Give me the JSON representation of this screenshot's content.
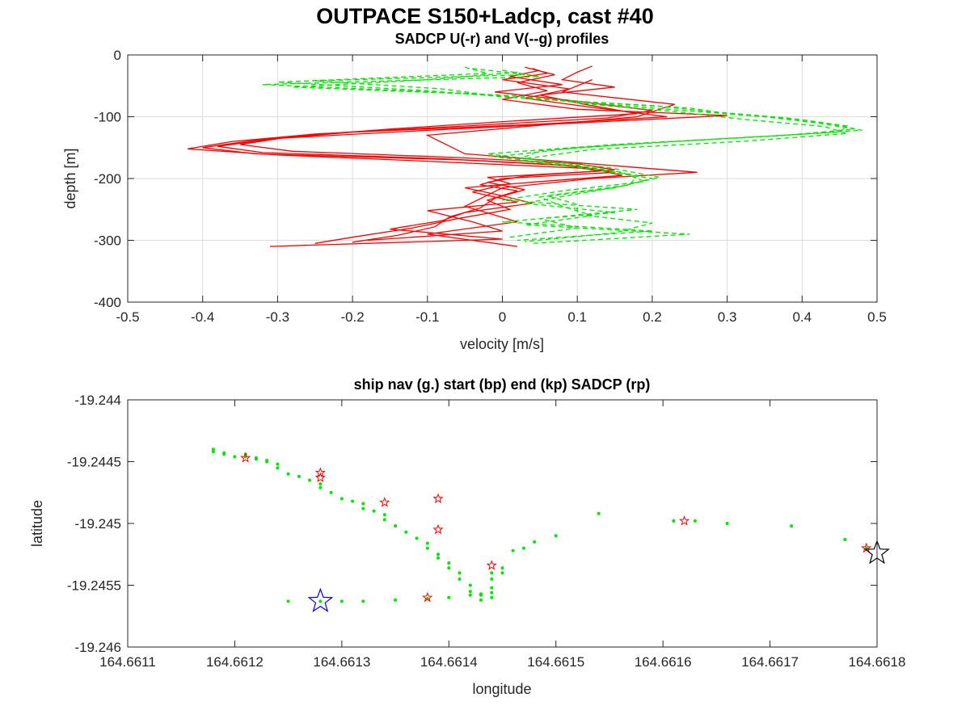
{
  "figure": {
    "title": "OUTPACE S150+Ladcp, cast #40"
  },
  "chart_data": [
    {
      "type": "line",
      "title": "SADCP U(-r) and V(--g) profiles",
      "xlabel": "velocity [m/s]",
      "ylabel": "depth [m]",
      "xlim": [
        -0.5,
        0.5
      ],
      "ylim": [
        -400,
        0
      ],
      "xticks": [
        -0.5,
        -0.4,
        -0.3,
        -0.2,
        -0.1,
        0,
        0.1,
        0.2,
        0.3,
        0.4,
        0.5
      ],
      "xtick_labels": [
        "-0.5",
        "-0.4",
        "-0.3",
        "-0.2",
        "-0.1",
        "0",
        "0.1",
        "0.2",
        "0.3",
        "0.4",
        "0.5"
      ],
      "yticks": [
        -400,
        -300,
        -200,
        -100,
        0
      ],
      "ytick_labels": [
        "-400",
        "-300",
        "-200",
        "-100",
        "0"
      ],
      "grid": true,
      "series": [
        {
          "color": "#ff0000",
          "style": "solid",
          "profiles": [
            {
              "depth": [
                -22,
                -30,
                -40,
                -55,
                -70,
                -85,
                -100,
                -112,
                -125,
                -138,
                -150,
                -160,
                -170,
                -180,
                -190,
                -200,
                -210,
                -220,
                -235,
                -250,
                -265,
                -280,
                -295,
                -305
              ],
              "values": [
                0.04,
                0.06,
                0.0,
                0.09,
                0.03,
                0.12,
                0.22,
                0.05,
                -0.2,
                -0.33,
                -0.4,
                -0.33,
                -0.05,
                0.1,
                0.15,
                0.0,
                -0.03,
                0.02,
                -0.02,
                0.01,
                -0.06,
                -0.12,
                -0.2,
                -0.25
              ]
            },
            {
              "depth": [
                -25,
                -35,
                -48,
                -60,
                -75,
                -90,
                -102,
                -115,
                -128,
                -140,
                -152,
                -162,
                -172,
                -184,
                -195,
                -205,
                -215,
                -228,
                -240,
                -255,
                -268,
                -282,
                -298,
                -310
              ],
              "values": [
                0.05,
                0.01,
                0.08,
                -0.01,
                0.1,
                0.2,
                0.14,
                -0.05,
                -0.25,
                -0.36,
                -0.42,
                -0.3,
                -0.1,
                0.12,
                0.16,
                0.05,
                -0.05,
                0.0,
                0.04,
                -0.05,
                -0.08,
                -0.15,
                0.0,
                -0.31
              ]
            },
            {
              "depth": [
                -20,
                -32,
                -45,
                -58,
                -72,
                -88,
                -98,
                -110,
                -122,
                -135,
                -148,
                -158,
                -168,
                -178,
                -188,
                -198,
                -208,
                -222,
                -238,
                -252,
                -270,
                -285,
                -300
              ],
              "values": [
                0.03,
                0.07,
                0.02,
                0.06,
                0.0,
                0.1,
                0.3,
                0.1,
                -0.1,
                -0.3,
                -0.38,
                -0.32,
                -0.08,
                0.08,
                0.13,
                -0.02,
                0.01,
                -0.04,
                0.02,
                -0.1,
                -0.04,
                0.0,
                -0.18
              ]
            },
            {
              "depth": [
                -18,
                -28,
                -40,
                -52,
                -65,
                -80,
                -95,
                -108,
                -120,
                -132,
                -145,
                -156,
                -166,
                -176,
                -186,
                -196,
                -206,
                -218,
                -232,
                -248,
                -262,
                -278,
                -292,
                -303
              ],
              "values": [
                0.12,
                0.1,
                0.08,
                0.15,
                0.05,
                0.11,
                0.18,
                0.0,
                -0.15,
                -0.28,
                -0.35,
                -0.28,
                -0.06,
                0.1,
                0.15,
                0.03,
                -0.02,
                0.03,
                -0.01,
                -0.03,
                -0.07,
                -0.09,
                -0.14,
                -0.2
              ]
            },
            {
              "depth": [
                -40,
                -60,
                -80,
                -100,
                -130,
                -160,
                -190,
                -200,
                -215,
                -245,
                -270,
                -290,
                -310
              ],
              "values": [
                0.12,
                0.08,
                0.23,
                0.18,
                -0.1,
                -0.05,
                0.26,
                0.12,
                0.0,
                -0.05,
                0.02,
                -0.1,
                0.02
              ]
            }
          ]
        },
        {
          "color": "#00e600",
          "style": "dashed",
          "profiles": [
            {
              "depth": [
                -20,
                -30,
                -44,
                -58,
                -72,
                -86,
                -95,
                -105,
                -115,
                -125,
                -135,
                -150,
                -165,
                -180,
                -195,
                -210,
                -225,
                -240,
                -255,
                -270,
                -285,
                -300
              ],
              "values": [
                -0.05,
                -0.02,
                -0.3,
                -0.1,
                0.05,
                0.25,
                0.3,
                0.4,
                0.46,
                0.45,
                0.3,
                0.1,
                -0.01,
                0.1,
                0.18,
                0.17,
                0.1,
                0.03,
                0.15,
                0.0,
                0.2,
                0.02
              ]
            },
            {
              "depth": [
                -25,
                -35,
                -48,
                -62,
                -76,
                -88,
                -100,
                -110,
                -120,
                -130,
                -142,
                -155,
                -170,
                -185,
                -200,
                -215,
                -230,
                -245,
                -260,
                -275,
                -290,
                -305
              ],
              "values": [
                0.0,
                0.05,
                -0.32,
                -0.05,
                0.1,
                0.22,
                0.35,
                0.42,
                0.47,
                0.38,
                0.2,
                0.05,
                0.02,
                0.12,
                0.2,
                0.15,
                0.05,
                0.08,
                0.12,
                0.03,
                0.25,
                0.04
              ]
            },
            {
              "depth": [
                -22,
                -32,
                -42,
                -55,
                -68,
                -82,
                -92,
                -102,
                -112,
                -122,
                -132,
                -145,
                -160,
                -175,
                -190,
                -205,
                -220,
                -235,
                -250,
                -265,
                -280,
                -295
              ],
              "values": [
                -0.04,
                0.03,
                -0.25,
                -0.08,
                0.0,
                0.2,
                0.28,
                0.38,
                0.44,
                0.48,
                0.35,
                0.15,
                -0.02,
                0.08,
                0.16,
                0.19,
                0.08,
                0.0,
                0.18,
                0.05,
                0.1,
                0.01
              ]
            },
            {
              "depth": [
                -28,
                -40,
                -52,
                -66,
                -80,
                -93,
                -104,
                -116,
                -127,
                -140,
                -153,
                -168,
                -182,
                -198,
                -212,
                -228,
                -242,
                -258,
                -272,
                -288,
                -302
              ],
              "values": [
                0.02,
                -0.1,
                -0.28,
                0.02,
                0.12,
                0.24,
                0.32,
                0.43,
                0.46,
                0.32,
                0.12,
                0.03,
                0.14,
                0.21,
                0.16,
                0.06,
                0.1,
                0.1,
                0.2,
                0.15,
                0.03
              ]
            }
          ]
        }
      ]
    },
    {
      "type": "scatter",
      "title": "ship nav (g.) start (bp) end (kp) SADCP (rp)",
      "xlabel": "longitude",
      "ylabel": "latitude",
      "xlim": [
        164.6611,
        164.6618
      ],
      "ylim": [
        -19.246,
        -19.244
      ],
      "xticks": [
        164.6611,
        164.6612,
        164.6613,
        164.6614,
        164.6615,
        164.6616,
        164.6617,
        164.6618
      ],
      "xtick_labels": [
        "164.6611",
        "164.6612",
        "164.6613",
        "164.6614",
        "164.6615",
        "164.6616",
        "164.6617",
        "164.6618"
      ],
      "yticks": [
        -19.246,
        -19.2455,
        -19.245,
        -19.2445,
        -19.244
      ],
      "ytick_labels": [
        "-19.246",
        "-19.2455",
        "-19.245",
        "-19.2445",
        "-19.244"
      ],
      "grid": false,
      "ship_nav": {
        "color": "#00e600",
        "lon": [
          164.66118,
          164.66118,
          164.66119,
          164.66119,
          164.6612,
          164.66121,
          164.66121,
          164.66122,
          164.66122,
          164.66123,
          164.66123,
          164.66124,
          164.66124,
          164.66125,
          164.66126,
          164.66127,
          164.66128,
          164.66128,
          164.66129,
          164.6613,
          164.66131,
          164.66132,
          164.66132,
          164.66133,
          164.66134,
          164.66134,
          164.66135,
          164.66136,
          164.66137,
          164.66138,
          164.66138,
          164.66139,
          164.66139,
          164.6614,
          164.6614,
          164.66141,
          164.66141,
          164.66142,
          164.66142,
          164.66143,
          164.66143,
          164.66144,
          164.66144,
          164.66144,
          164.66144,
          164.66145,
          164.66145,
          164.66146,
          164.66147,
          164.66148,
          164.6615,
          164.66154,
          164.66161,
          164.66163,
          164.66166,
          164.66172,
          164.66177,
          164.66179,
          164.66125,
          164.66128,
          164.6613,
          164.66132,
          164.66135,
          164.66138,
          164.6614,
          164.66142,
          164.66143,
          164.66144
        ],
        "lat": [
          -19.2444,
          -19.24442,
          -19.24443,
          -19.24444,
          -19.24446,
          -19.24444,
          -19.24446,
          -19.24447,
          -19.24448,
          -19.24449,
          -19.2445,
          -19.24452,
          -19.24455,
          -19.2446,
          -19.24462,
          -19.24465,
          -19.24468,
          -19.24471,
          -19.24475,
          -19.2448,
          -19.24482,
          -19.24484,
          -19.24488,
          -19.2449,
          -19.24493,
          -19.24497,
          -19.24502,
          -19.24507,
          -19.24512,
          -19.24516,
          -19.2452,
          -19.24525,
          -19.24528,
          -19.24532,
          -19.24536,
          -19.2454,
          -19.24545,
          -19.2455,
          -19.24555,
          -19.24558,
          -19.24562,
          -19.2454,
          -19.24545,
          -19.24552,
          -19.2456,
          -19.24536,
          -19.2454,
          -19.24522,
          -19.2452,
          -19.24515,
          -19.2451,
          -19.24492,
          -19.24498,
          -19.24498,
          -19.245,
          -19.24502,
          -19.24513,
          -19.2452,
          -19.24563,
          -19.24563,
          -19.24563,
          -19.24563,
          -19.24562,
          -19.24561,
          -19.2456,
          -19.24558,
          -19.24557,
          -19.24556
        ]
      },
      "start": {
        "lon": 164.66128,
        "lat": -19.24563,
        "color": "#0000ff"
      },
      "end": {
        "lon": 164.6618,
        "lat": -19.24524,
        "color": "#000000"
      },
      "sadcp": {
        "color": "#ff0000",
        "lon": [
          164.66121,
          164.66128,
          164.66128,
          164.66134,
          164.66139,
          164.66139,
          164.66144,
          164.66138,
          164.66162,
          164.66179
        ],
        "lat": [
          -19.24447,
          -19.24459,
          -19.24463,
          -19.24483,
          -19.2448,
          -19.24505,
          -19.24534,
          -19.2456,
          -19.24498,
          -19.2452
        ]
      }
    }
  ]
}
